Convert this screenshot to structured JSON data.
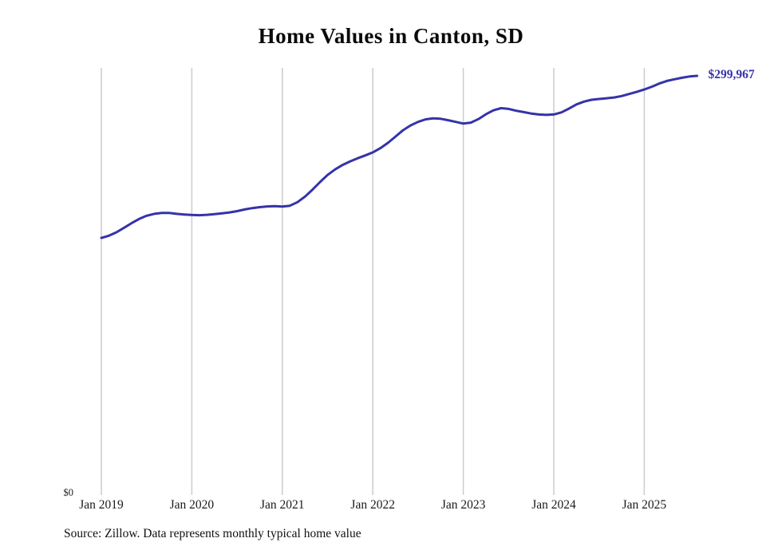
{
  "page": {
    "title": "Home Values in Canton, SD"
  },
  "chart_data": {
    "type": "line",
    "title": "Home Values in Canton, SD",
    "series_name": "Monthly typical home value",
    "unit": "USD",
    "x_start": "Jan 2019",
    "x_end": "Aug 2025",
    "x_tick_labels": [
      "Jan 2019",
      "Jan 2020",
      "Jan 2021",
      "Jan 2022",
      "Jan 2023",
      "Jan 2024",
      "Jan 2025"
    ],
    "y_axis": {
      "min": 0,
      "min_label": "$0",
      "max": 299967
    },
    "end_label": "$299,967",
    "final_value": 299967,
    "grid": true,
    "legend": "none",
    "line_color": "#3533a8",
    "gridline_color": "#cccccc",
    "values": [
      184000,
      185500,
      188000,
      191200,
      194500,
      197500,
      199800,
      201200,
      201800,
      201800,
      201200,
      200700,
      200400,
      200200,
      200500,
      201000,
      201600,
      202200,
      203100,
      204300,
      205300,
      206000,
      206500,
      206700,
      206400,
      207000,
      209500,
      213500,
      218500,
      224000,
      229000,
      233000,
      236200,
      238800,
      241000,
      243000,
      245200,
      248200,
      252000,
      256500,
      261000,
      264500,
      267000,
      268800,
      269500,
      269200,
      268200,
      267000,
      265800,
      266500,
      269000,
      272500,
      275300,
      276800,
      276300,
      275000,
      274000,
      273000,
      272300,
      272000,
      272300,
      273800,
      276500,
      279500,
      281500,
      282800,
      283400,
      283900,
      284500,
      285500,
      287000,
      288500,
      290200,
      292200,
      294500,
      296300,
      297500,
      298600,
      299500,
      299967
    ]
  },
  "footer": {
    "source": "Source: Zillow. Data represents monthly typical home value"
  }
}
